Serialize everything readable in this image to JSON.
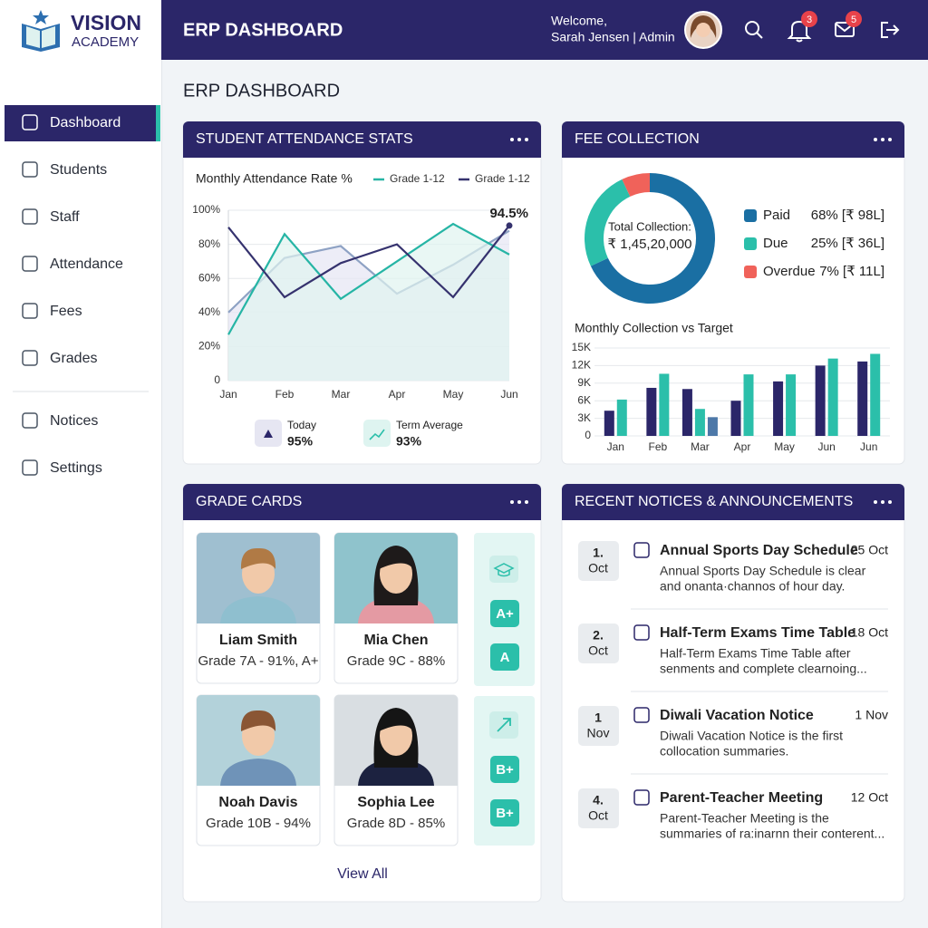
{
  "brand": {
    "name": "VISION",
    "sub": "ACADEMY"
  },
  "header": {
    "title": "ERP DASHBOARD",
    "welcome": "Welcome,",
    "user": "Sarah Jensen | Admin",
    "notifications": 3,
    "messages": 5
  },
  "sidebar": [
    "Dashboard",
    "Students",
    "Staff",
    "Attendance",
    "Fees",
    "Grades",
    "Notices",
    "Settings"
  ],
  "page_title": "ERP DASHBOARD",
  "attendance": {
    "title": "STUDENT ATTENDANCE STATS",
    "stats": [
      {
        "label": "Today",
        "value": "95%"
      },
      {
        "label": "Term Average",
        "value": "93%"
      }
    ]
  },
  "fees": {
    "title": "FEE COLLECTION"
  },
  "chart_data": [
    {
      "type": "line",
      "title": "Monthly Attendance Rate %",
      "categories": [
        "Jan",
        "Feb",
        "Mar",
        "Apr",
        "May",
        "Jun"
      ],
      "series": [
        {
          "color": "#8ea2c4",
          "area_color": "#e6e6f4",
          "values": [
            40,
            72,
            79,
            51,
            68,
            88
          ]
        },
        {
          "name": "Grade 1-12",
          "color": "#26b5a5",
          "area_color": "#dff3ef",
          "values": [
            27,
            86,
            48,
            70,
            92,
            74
          ]
        },
        {
          "name": "Grade 1-12",
          "color": "#35326e",
          "values": [
            90,
            49,
            69,
            80,
            49,
            91
          ]
        }
      ],
      "annotation": "94.5%",
      "ylim": [
        0,
        100
      ],
      "yticks": [
        0,
        {
          "value": 20,
          "label": "20%"
        },
        {
          "value": 40,
          "label": "40%"
        },
        {
          "value": 60,
          "label": "60%"
        },
        {
          "value": 80,
          "label": "80%"
        },
        {
          "value": 100,
          "label": "100%"
        }
      ],
      "grid": true
    },
    {
      "type": "pie",
      "donut": true,
      "categories": [
        "Paid",
        "Due",
        "Overdue"
      ],
      "values": [
        68,
        25,
        7
      ],
      "value_labels": [
        "68% [₹ 98L]",
        "25% [₹ 36L]",
        "7% [₹ 11L]"
      ],
      "colors": [
        "#1a6fa3",
        "#2bbfaa",
        "#f0625a"
      ],
      "center_label": "Total Collection:",
      "center_value": "₹ 1,45,20,000"
    },
    {
      "type": "bar",
      "title": "Monthly Collection vs Target",
      "categories": [
        "Jan",
        "Feb",
        "Mar",
        "Apr",
        "May",
        "Jun",
        "Jun"
      ],
      "series": [
        {
          "color": "#2b2669",
          "values": [
            4300,
            8200,
            8000,
            6000,
            9300,
            12000,
            12700
          ]
        },
        {
          "color": "#2bbfaa",
          "values": [
            6200,
            10600,
            4600,
            10500,
            10500,
            13200,
            14000
          ]
        },
        {
          "color": "#4d78a8",
          "values": [
            null,
            null,
            3200,
            null,
            null,
            null,
            null
          ]
        }
      ],
      "ylim": [
        0,
        15000
      ],
      "yticks": [
        0,
        {
          "value": 3000,
          "label": "3K"
        },
        {
          "value": 6000,
          "label": "6K"
        },
        {
          "value": 9000,
          "label": "9K"
        },
        {
          "value": 12000,
          "label": "12K"
        },
        {
          "value": 15000,
          "label": "15K"
        }
      ],
      "grid": true
    }
  ],
  "grades": {
    "title": "GRADE CARDS",
    "students": [
      {
        "name": "Liam Smith",
        "detail": "Grade 7A - 91%, A+"
      },
      {
        "name": "Mia Chen",
        "detail": "Grade 9C - 88%"
      },
      {
        "name": "Noah Davis",
        "detail": "Grade 10B - 94%"
      },
      {
        "name": "Sophia Lee",
        "detail": "Grade 8D - 85%"
      }
    ],
    "badges": [
      "A+",
      "A",
      "B+",
      "B+"
    ],
    "view_all": "View All"
  },
  "notices": {
    "title": "RECENT NOTICES & ANNOUNCEMENTS",
    "items": [
      {
        "day": "1.",
        "month": "Oct",
        "title": "Annual Sports Day Schedule",
        "date": "25 Oct",
        "body": [
          "Annual Sports Day Schedule is clear",
          "and onanta·channos of hour day."
        ]
      },
      {
        "day": "2.",
        "month": "Oct",
        "title": "Half-Term Exams Time Table",
        "date": "18 Oct",
        "body": [
          "Half-Term Exams Time Table after",
          "senments and complete clearnoing..."
        ]
      },
      {
        "day": "1",
        "month": "Nov",
        "title": "Diwali Vacation Notice",
        "date": "1 Nov",
        "body": [
          "Diwali Vacation Notice is the first",
          "collocation summaries."
        ]
      },
      {
        "day": "4.",
        "month": "Oct",
        "title": "Parent-Teacher Meeting",
        "date": "12 Oct",
        "body": [
          "Parent-Teacher Meeting is the",
          "summaries of ra:inarnn their conterent..."
        ]
      }
    ]
  }
}
